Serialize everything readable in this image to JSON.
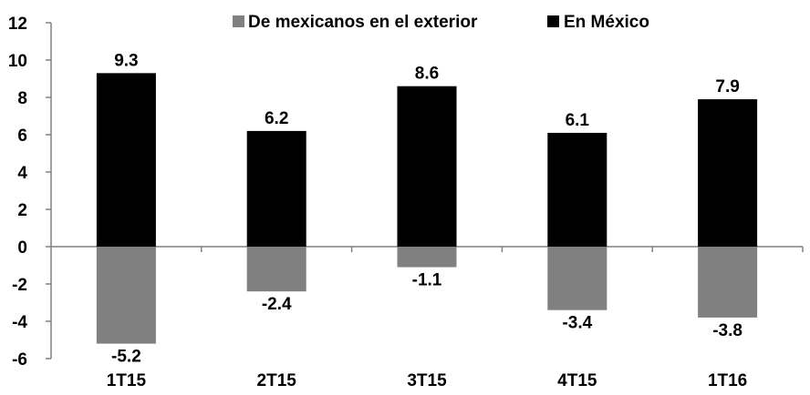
{
  "chart_data": {
    "type": "bar",
    "categories": [
      "1T15",
      "2T15",
      "3T15",
      "4T15",
      "1T16"
    ],
    "series": [
      {
        "name": "En México",
        "values": [
          9.3,
          6.2,
          8.6,
          6.1,
          7.9
        ],
        "color": "#000000"
      },
      {
        "name": "De mexicanos en el exterior",
        "values": [
          -5.2,
          -2.4,
          -1.1,
          -3.4,
          -3.8
        ],
        "color": "#808080"
      }
    ],
    "value_labels": {
      "positive": [
        "9.3",
        "6.2",
        "8.6",
        "6.1",
        "7.9"
      ],
      "negative": [
        "-5.2",
        "-2.4",
        "-1.1",
        "-3.4",
        "-3.8"
      ]
    },
    "y_ticks": [
      "12",
      "10",
      "8",
      "6",
      "4",
      "2",
      "0",
      "-2",
      "-4",
      "-6"
    ],
    "ylim": [
      -6,
      12
    ],
    "legend": [
      {
        "label": "De mexicanos en el exterior",
        "color": "#808080"
      },
      {
        "label": "En México",
        "color": "#000000"
      }
    ],
    "legend_position": "top-center",
    "grid": false,
    "stacked": true
  }
}
